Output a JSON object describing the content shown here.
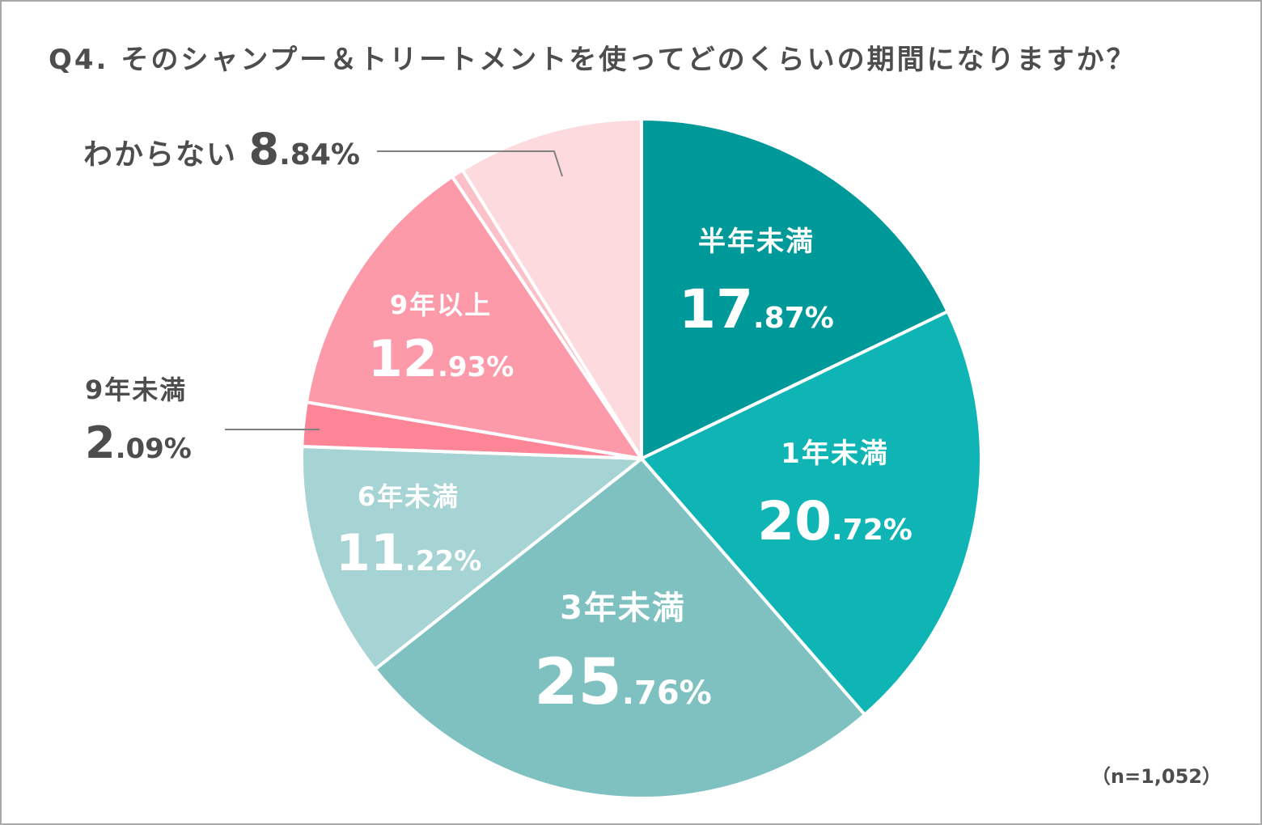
{
  "title": "Q4. そのシャンプー＆トリートメントを使ってどのくらいの期間になりますか？",
  "note": "（n=1,052）",
  "chart_data": {
    "type": "pie",
    "title": "Q4. そのシャンプー＆トリートメントを使ってどのくらいの期間になりますか？",
    "start": "12 o'clock, clockwise",
    "slices": [
      {
        "label": "半年未満",
        "value": 17.87,
        "int": "17",
        "dec": ".87%",
        "color": "#00999a"
      },
      {
        "label": "1年未満",
        "value": 20.72,
        "int": "20",
        "dec": ".72%",
        "color": "#0fb5b5"
      },
      {
        "label": "3年未満",
        "value": 25.76,
        "int": "25",
        "dec": ".76%",
        "color": "#7fc1c1"
      },
      {
        "label": "6年未満",
        "value": 11.22,
        "int": "11",
        "dec": ".22%",
        "color": "#a6d3d3"
      },
      {
        "label": "9年未満",
        "value": 2.09,
        "int": "2",
        "dec": ".09%",
        "color": "#fc8597"
      },
      {
        "label": "9年以上",
        "value": 12.93,
        "int": "12",
        "dec": ".93%",
        "color": "#fc9aaa"
      },
      {
        "label": "",
        "value": 0.57,
        "int": "",
        "dec": "",
        "color": "#fcc0c8"
      },
      {
        "label": "わからない",
        "value": 8.84,
        "int": "8",
        "dec": ".84%",
        "color": "#fddadd"
      }
    ]
  }
}
